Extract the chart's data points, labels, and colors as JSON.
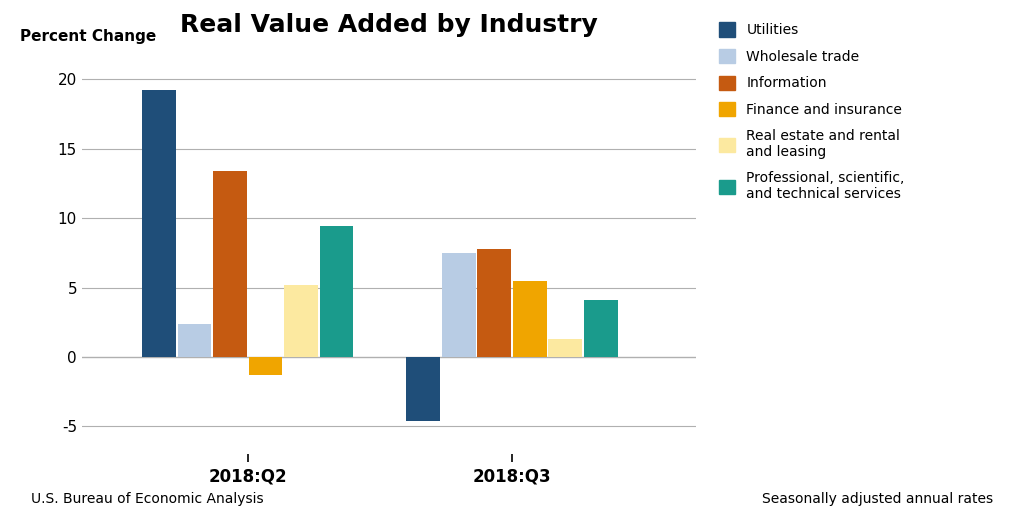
{
  "title": "Real Value Added by Industry",
  "ylabel": "Percent Change",
  "quarters": [
    "2018:Q2",
    "2018:Q3"
  ],
  "series": [
    {
      "name": "Utilities",
      "color": "#1f4e79",
      "values": [
        19.2,
        -4.6
      ]
    },
    {
      "name": "Wholesale trade",
      "color": "#b8cce4",
      "values": [
        2.4,
        7.5
      ]
    },
    {
      "name": "Information",
      "color": "#c55a11",
      "values": [
        13.4,
        7.8
      ]
    },
    {
      "name": "Finance and insurance",
      "color": "#f0a500",
      "values": [
        -1.3,
        5.5
      ]
    },
    {
      "name": "Real estate and rental\nand leasing",
      "color": "#fce9a0",
      "values": [
        5.2,
        1.3
      ]
    },
    {
      "name": "Professional, scientific,\nand technical services",
      "color": "#1a9b8c",
      "values": [
        9.4,
        4.1
      ]
    }
  ],
  "ylim": [
    -7,
    22
  ],
  "yticks": [
    -5,
    0,
    5,
    10,
    15,
    20
  ],
  "footnote_left": "U.S. Bureau of Economic Analysis",
  "footnote_right": "Seasonally adjusted annual rates",
  "background_color": "#ffffff",
  "grid_color": "#b0b0b0",
  "bar_width": 0.055
}
